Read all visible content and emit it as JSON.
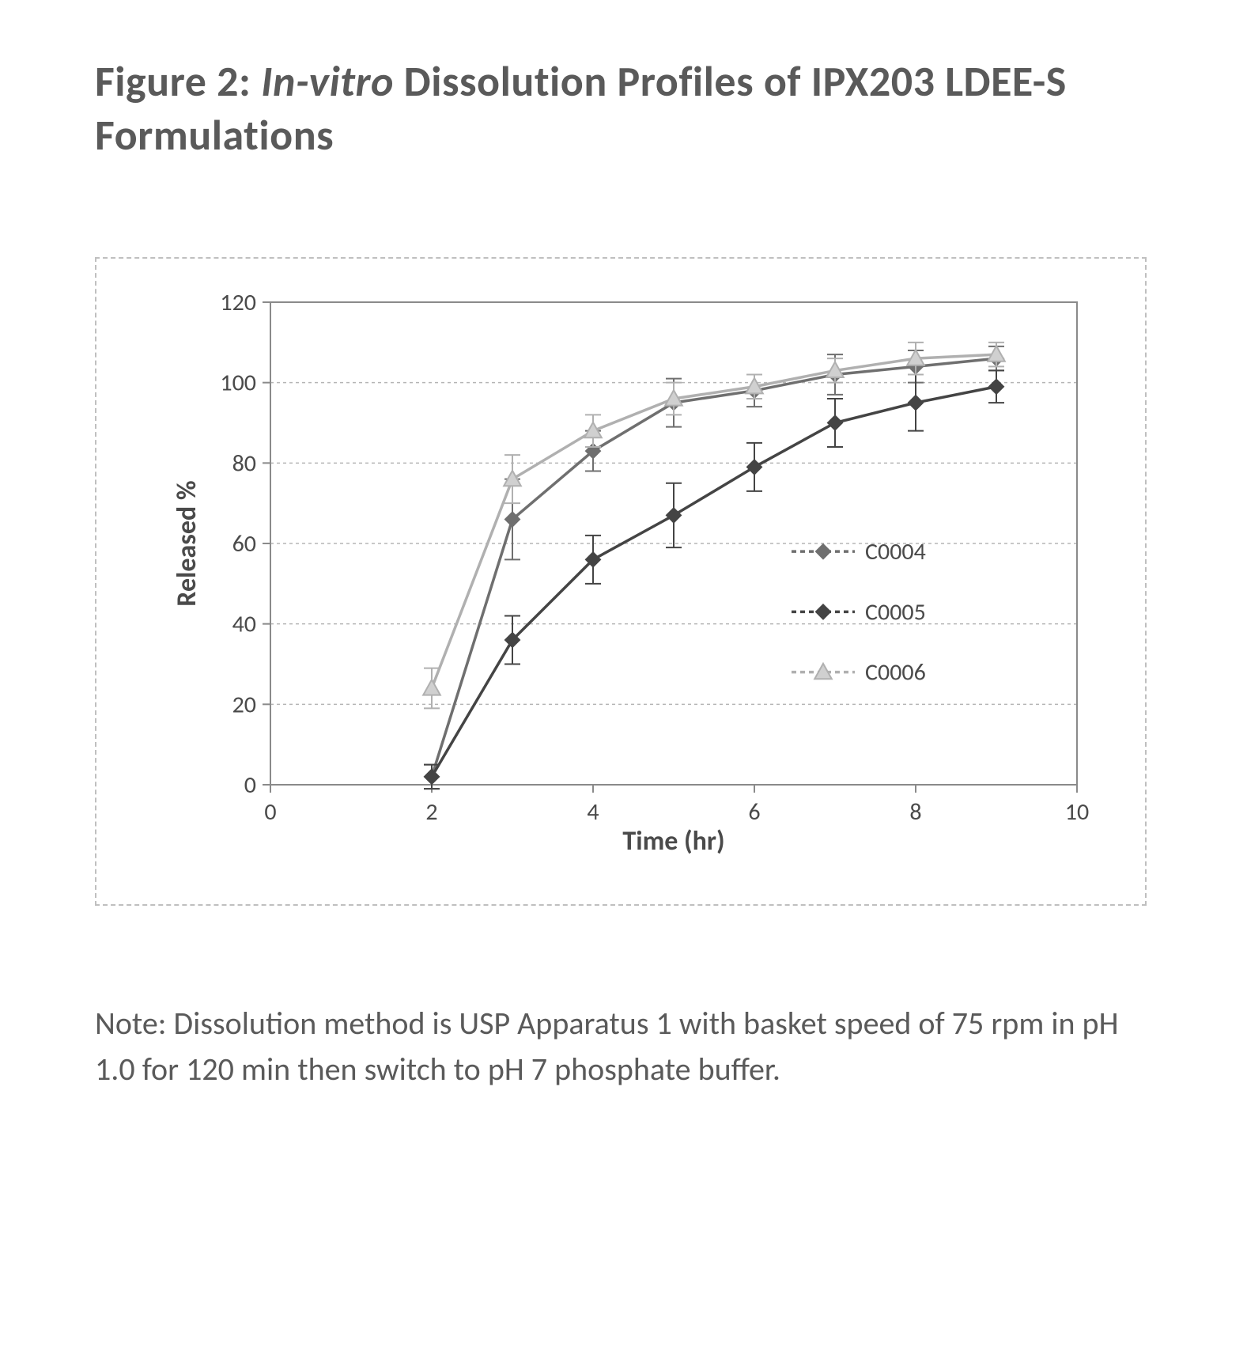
{
  "title": {
    "prefix": "Figure 2: ",
    "italic": "In-vitro",
    "rest": " Dissolution Profiles of IPX203 LDEE-S Formulations"
  },
  "note": "Note:  Dissolution method is USP Apparatus 1 with basket speed of 75 rpm in pH 1.0 for 120 min then switch to pH 7 phosphate buffer.",
  "chart": {
    "type": "line",
    "background_color": "#ffffff",
    "plot_border_color": "#8a8a8a",
    "grid_color": "#b5b5b5",
    "grid_dash": "4 4",
    "axis_line_width": 2,
    "xlabel": "Time (hr)",
    "ylabel": "Released %",
    "label_fontsize": 34,
    "tick_fontsize": 30,
    "xlim": [
      0,
      10
    ],
    "ylim": [
      0,
      120
    ],
    "xticks": [
      0,
      2,
      4,
      6,
      8,
      10
    ],
    "yticks": [
      0,
      20,
      40,
      60,
      80,
      100,
      120
    ],
    "line_width": 3.5,
    "marker_size": 9,
    "errorbar_cap": 10,
    "legend": {
      "x": 7.0,
      "y_top": 58,
      "spacing": 15,
      "box": false
    },
    "series": [
      {
        "name": "C0004",
        "color": "#6f6f6f",
        "marker": "diamond",
        "marker_fill": "#6f6f6f",
        "x": [
          2,
          3,
          4,
          5,
          6,
          7,
          8,
          9
        ],
        "y": [
          2,
          66,
          83,
          95,
          98,
          102,
          104,
          106
        ],
        "err": [
          3,
          10,
          5,
          6,
          4,
          5,
          4,
          3
        ]
      },
      {
        "name": "C0005",
        "color": "#444444",
        "marker": "diamond",
        "marker_fill": "#444444",
        "x": [
          2,
          3,
          4,
          5,
          6,
          7,
          8,
          9
        ],
        "y": [
          2,
          36,
          56,
          67,
          79,
          90,
          95,
          99
        ],
        "err": [
          3,
          6,
          6,
          8,
          6,
          6,
          7,
          4
        ]
      },
      {
        "name": "C0006",
        "color": "#b0b0b0",
        "marker": "triangle",
        "marker_fill": "#d0d0d0",
        "x": [
          2,
          3,
          4,
          5,
          6,
          7,
          8,
          9
        ],
        "y": [
          24,
          76,
          88,
          96,
          99,
          103,
          106,
          107
        ],
        "err": [
          5,
          6,
          4,
          4,
          3,
          3,
          4,
          3
        ]
      }
    ]
  }
}
